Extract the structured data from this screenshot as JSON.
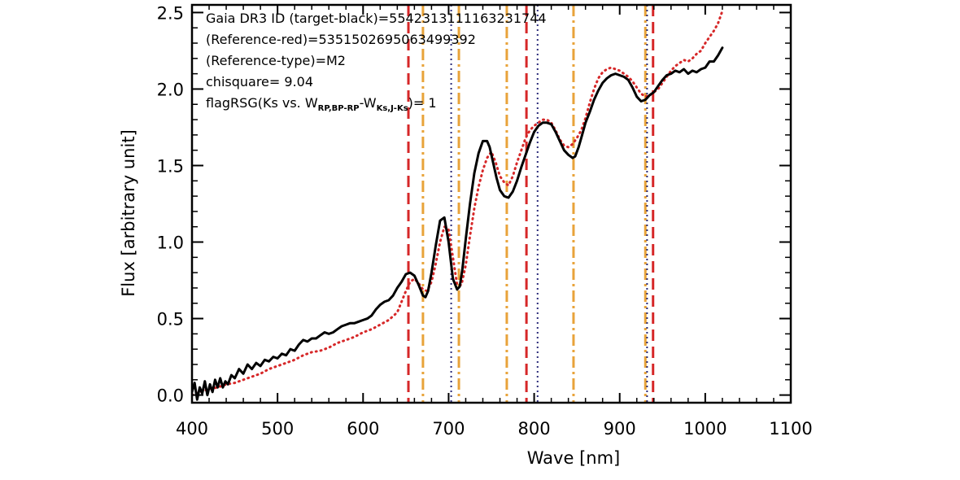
{
  "chart_data": {
    "type": "line",
    "title": "",
    "xlabel": "Wave [nm]",
    "ylabel": "Flux [arbitrary unit]",
    "xlim": [
      400,
      1100
    ],
    "ylim": [
      -0.05,
      2.55
    ],
    "xticks": [
      400,
      500,
      600,
      700,
      800,
      900,
      1000,
      1100
    ],
    "xtick_labels": [
      "400",
      "500",
      "600",
      "700",
      "800",
      "900",
      "1000",
      "1100"
    ],
    "yticks": [
      0.0,
      0.5,
      1.0,
      1.5,
      2.0,
      2.5
    ],
    "ytick_labels": [
      "0.0",
      "0.5",
      "1.0",
      "1.5",
      "2.0",
      "2.5"
    ],
    "grid": false,
    "annotations": {
      "line1": "Gaia DR3 ID (target-black)=5542313111163231744",
      "line2": "(Reference-red)=5351502695063499392",
      "line3": "(Reference-type)=M2",
      "line4": "chisquare= 9.04",
      "line5_prefix": "flagRSG(Ks vs. W",
      "line5_sub1": "RP,BP-RP",
      "line5_mid": "-W",
      "line5_sub2": "Ks,J-Ks",
      "line5_suffix": ")= 1"
    },
    "series": [
      {
        "color": "#000000",
        "style": "solid",
        "x": [
          400,
          403,
          406,
          409,
          412,
          415,
          418,
          421,
          424,
          427,
          430,
          433,
          436,
          439,
          442,
          446,
          450,
          455,
          460,
          465,
          470,
          475,
          480,
          485,
          490,
          495,
          500,
          505,
          510,
          515,
          520,
          525,
          530,
          535,
          540,
          545,
          550,
          555,
          560,
          565,
          570,
          575,
          580,
          585,
          590,
          595,
          600,
          605,
          610,
          615,
          620,
          625,
          630,
          635,
          640,
          645,
          650,
          655,
          660,
          665,
          670,
          673,
          676,
          680,
          685,
          690,
          695,
          700,
          705,
          710,
          713,
          716,
          720,
          725,
          730,
          735,
          740,
          745,
          748,
          752,
          756,
          760,
          765,
          770,
          775,
          780,
          785,
          790,
          795,
          800,
          805,
          810,
          815,
          820,
          825,
          830,
          835,
          840,
          845,
          848,
          852,
          856,
          860,
          865,
          870,
          875,
          880,
          885,
          890,
          895,
          900,
          905,
          910,
          915,
          920,
          925,
          930,
          935,
          940,
          945,
          950,
          955,
          960,
          965,
          970,
          975,
          980,
          985,
          990,
          995,
          1000,
          1005,
          1010,
          1015,
          1020
        ],
        "y": [
          0.02,
          0.08,
          -0.03,
          0.05,
          0.01,
          0.09,
          0.0,
          0.07,
          0.02,
          0.1,
          0.05,
          0.11,
          0.05,
          0.09,
          0.07,
          0.13,
          0.11,
          0.17,
          0.14,
          0.2,
          0.17,
          0.21,
          0.19,
          0.23,
          0.22,
          0.25,
          0.24,
          0.27,
          0.26,
          0.3,
          0.29,
          0.33,
          0.36,
          0.35,
          0.37,
          0.37,
          0.39,
          0.41,
          0.4,
          0.41,
          0.43,
          0.45,
          0.46,
          0.47,
          0.47,
          0.48,
          0.49,
          0.5,
          0.52,
          0.56,
          0.59,
          0.61,
          0.62,
          0.65,
          0.7,
          0.74,
          0.79,
          0.8,
          0.78,
          0.72,
          0.65,
          0.64,
          0.68,
          0.8,
          0.98,
          1.14,
          1.16,
          1.0,
          0.76,
          0.69,
          0.71,
          0.82,
          1.02,
          1.25,
          1.45,
          1.58,
          1.66,
          1.66,
          1.62,
          1.52,
          1.42,
          1.34,
          1.3,
          1.29,
          1.33,
          1.4,
          1.49,
          1.57,
          1.65,
          1.72,
          1.76,
          1.78,
          1.78,
          1.77,
          1.72,
          1.66,
          1.6,
          1.57,
          1.55,
          1.56,
          1.62,
          1.7,
          1.78,
          1.85,
          1.93,
          1.99,
          2.04,
          2.07,
          2.09,
          2.1,
          2.09,
          2.08,
          2.06,
          2.01,
          1.95,
          1.92,
          1.93,
          1.96,
          1.98,
          2.02,
          2.06,
          2.09,
          2.1,
          2.12,
          2.11,
          2.13,
          2.1,
          2.12,
          2.11,
          2.13,
          2.14,
          2.18,
          2.18,
          2.22,
          2.27
        ]
      },
      {
        "color": "#d62728",
        "style": "dotted",
        "x": [
          400,
          410,
          420,
          430,
          440,
          450,
          460,
          470,
          480,
          490,
          500,
          510,
          520,
          530,
          540,
          550,
          560,
          570,
          580,
          590,
          600,
          610,
          620,
          630,
          640,
          650,
          655,
          660,
          665,
          670,
          675,
          680,
          685,
          690,
          695,
          700,
          705,
          710,
          715,
          720,
          725,
          730,
          735,
          740,
          745,
          750,
          755,
          760,
          765,
          770,
          775,
          780,
          785,
          790,
          795,
          800,
          805,
          810,
          815,
          820,
          825,
          830,
          835,
          840,
          845,
          850,
          855,
          860,
          865,
          870,
          875,
          880,
          885,
          890,
          895,
          900,
          905,
          910,
          915,
          920,
          925,
          930,
          935,
          940,
          945,
          950,
          955,
          960,
          965,
          970,
          975,
          980,
          985,
          990,
          995,
          1000,
          1005,
          1010,
          1015,
          1020
        ],
        "y": [
          0.0,
          0.02,
          0.04,
          0.05,
          0.07,
          0.08,
          0.1,
          0.12,
          0.14,
          0.17,
          0.19,
          0.21,
          0.23,
          0.26,
          0.28,
          0.29,
          0.31,
          0.34,
          0.36,
          0.38,
          0.41,
          0.43,
          0.46,
          0.49,
          0.54,
          0.68,
          0.74,
          0.76,
          0.73,
          0.69,
          0.68,
          0.74,
          0.86,
          1.0,
          1.1,
          1.08,
          0.9,
          0.72,
          0.72,
          0.85,
          1.04,
          1.22,
          1.36,
          1.47,
          1.55,
          1.59,
          1.52,
          1.43,
          1.39,
          1.37,
          1.43,
          1.52,
          1.6,
          1.68,
          1.73,
          1.76,
          1.78,
          1.8,
          1.8,
          1.78,
          1.73,
          1.67,
          1.63,
          1.62,
          1.64,
          1.68,
          1.73,
          1.81,
          1.91,
          2.0,
          2.07,
          2.11,
          2.13,
          2.14,
          2.13,
          2.12,
          2.1,
          2.08,
          2.05,
          2.01,
          1.97,
          1.95,
          1.96,
          1.98,
          2.0,
          2.04,
          2.08,
          2.12,
          2.15,
          2.17,
          2.19,
          2.18,
          2.2,
          2.23,
          2.25,
          2.3,
          2.34,
          2.38,
          2.43,
          2.51
        ]
      }
    ],
    "vertical_lines": [
      {
        "x": 653,
        "color": "#d62728",
        "style": "dashed"
      },
      {
        "x": 791,
        "color": "#d62728",
        "style": "dashed"
      },
      {
        "x": 939,
        "color": "#d62728",
        "style": "dashed"
      },
      {
        "x": 670,
        "color": "#e8a33a",
        "style": "dashdot"
      },
      {
        "x": 712,
        "color": "#e8a33a",
        "style": "dashdot"
      },
      {
        "x": 768,
        "color": "#e8a33a",
        "style": "dashdot"
      },
      {
        "x": 846,
        "color": "#e8a33a",
        "style": "dashdot"
      },
      {
        "x": 930,
        "color": "#e8a33a",
        "style": "dashdot"
      },
      {
        "x": 703,
        "color": "#2b2b7a",
        "style": "dotted"
      },
      {
        "x": 804,
        "color": "#2b2b7a",
        "style": "dotted"
      },
      {
        "x": 932,
        "color": "#2b2b7a",
        "style": "dotted"
      }
    ]
  }
}
